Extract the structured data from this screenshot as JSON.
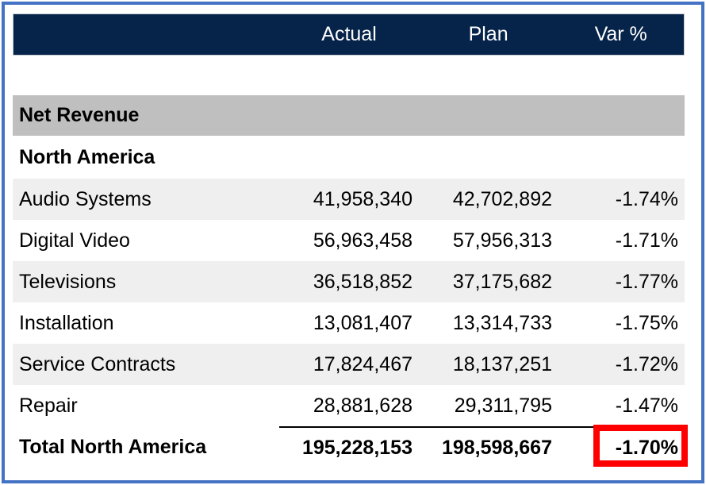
{
  "colors": {
    "frame_blue": "#4472c4",
    "header_navy": "#06234a",
    "section_gray": "#bfbfbf",
    "zebra_gray": "#efefef",
    "highlight_red": "#fe0000",
    "rule_black": "#000000"
  },
  "table": {
    "headers": {
      "name": "",
      "actual": "Actual",
      "plan": "Plan",
      "var": "Var %"
    },
    "section_label": "Net Revenue",
    "group_label": "North America",
    "rows": [
      {
        "label": "Audio Systems",
        "actual": "41,958,340",
        "plan": "42,702,892",
        "var": "-1.74%"
      },
      {
        "label": "Digital Video",
        "actual": "56,963,458",
        "plan": "57,956,313",
        "var": "-1.71%"
      },
      {
        "label": "Televisions",
        "actual": "36,518,852",
        "plan": "37,175,682",
        "var": "-1.77%"
      },
      {
        "label": "Installation",
        "actual": "13,081,407",
        "plan": "13,314,733",
        "var": "-1.75%"
      },
      {
        "label": "Service Contracts",
        "actual": "17,824,467",
        "plan": "18,137,251",
        "var": "-1.72%"
      },
      {
        "label": "Repair",
        "actual": "28,881,628",
        "plan": "29,311,795",
        "var": "-1.47%"
      }
    ],
    "total": {
      "label": "Total North America",
      "actual": "195,228,153",
      "plan": "198,598,667",
      "var": "-1.70%"
    }
  },
  "chart_data": {
    "type": "table",
    "section": "Net Revenue",
    "group": "North America",
    "columns": [
      "Actual",
      "Plan",
      "Var %"
    ],
    "rows": [
      {
        "label": "Audio Systems",
        "actual": 41958340,
        "plan": 42702892,
        "var_pct": -1.74
      },
      {
        "label": "Digital Video",
        "actual": 56963458,
        "plan": 57956313,
        "var_pct": -1.71
      },
      {
        "label": "Televisions",
        "actual": 36518852,
        "plan": 37175682,
        "var_pct": -1.77
      },
      {
        "label": "Installation",
        "actual": 13081407,
        "plan": 13314733,
        "var_pct": -1.75
      },
      {
        "label": "Service Contracts",
        "actual": 17824467,
        "plan": 18137251,
        "var_pct": -1.72
      },
      {
        "label": "Repair",
        "actual": 28881628,
        "plan": 29311795,
        "var_pct": -1.47
      }
    ],
    "total": {
      "label": "Total North America",
      "actual": 195228153,
      "plan": 198598667,
      "var_pct": -1.7
    },
    "highlighted_cell": {
      "row": "Total North America",
      "column": "Var %",
      "value": -1.7
    }
  }
}
